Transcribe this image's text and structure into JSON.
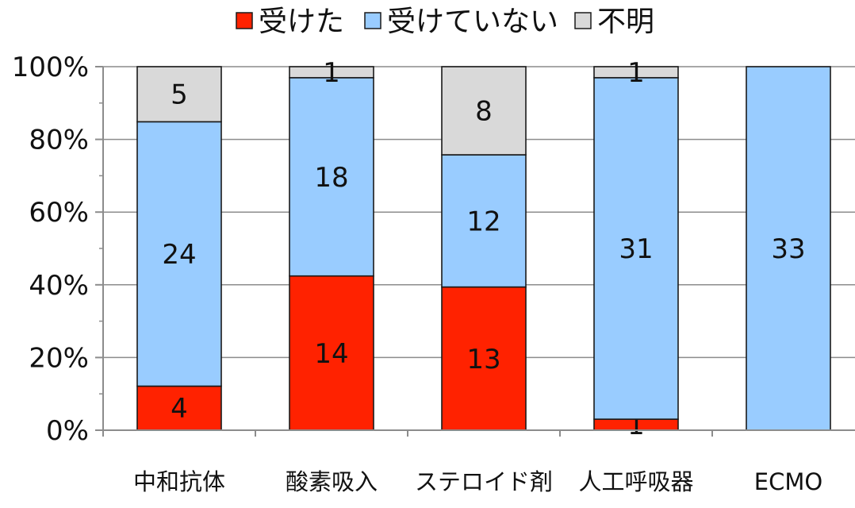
{
  "chart_data": {
    "type": "bar",
    "stacked": "percent",
    "title": "",
    "xlabel": "",
    "ylabel": "",
    "categories": [
      "中和抗体",
      "酸素吸入",
      "ステロイド剤",
      "人工呼吸器",
      "ECMO"
    ],
    "series": [
      {
        "name": "受けた",
        "color": "#ff2200",
        "values": [
          4,
          14,
          13,
          1,
          0
        ],
        "labels": [
          "4",
          "14",
          "13",
          "1",
          ""
        ]
      },
      {
        "name": "受けていない",
        "color": "#99ccff",
        "values": [
          24,
          18,
          12,
          31,
          33
        ],
        "labels": [
          "24",
          "18",
          "12",
          "31",
          "33"
        ]
      },
      {
        "name": "不明",
        "color": "#d9d9d9",
        "values": [
          5,
          1,
          8,
          1,
          0
        ],
        "labels": [
          "5",
          "1",
          "8",
          "1",
          ""
        ]
      }
    ],
    "ylim": [
      0,
      100
    ],
    "yticks": [
      "0%",
      "20%",
      "40%",
      "60%",
      "80%",
      "100%"
    ],
    "grid": true,
    "legend_position": "top"
  }
}
